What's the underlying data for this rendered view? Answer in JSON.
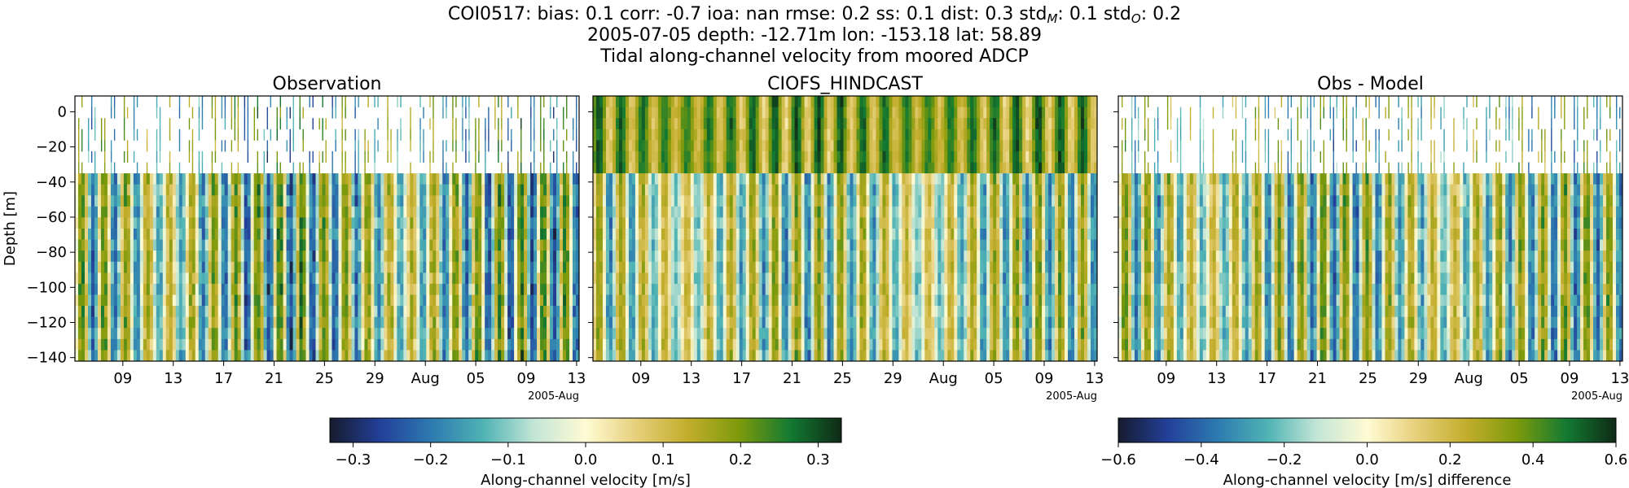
{
  "header": {
    "line1": {
      "stat_id": "COI0517",
      "bias_label": "bias:",
      "bias_value": "0.1",
      "corr_label": "corr:",
      "corr_value": "-0.7",
      "ioa_label": "ioa:",
      "ioa_value": "nan",
      "rmse_label": "rmse:",
      "rmse_value": "0.2",
      "ss_label": "ss:",
      "ss_value": "0.1",
      "dist_label": "dist:",
      "dist_value": "0.3",
      "stdm_base": "std",
      "stdm_sub": "M",
      "stdm_value": "0.1",
      "stdo_base": "std",
      "stdo_sub": "O",
      "stdo_value": "0.2"
    },
    "line2": "2005-07-05 depth: -12.71m lon: -153.18 lat: 58.89",
    "line3": "Tidal along-channel velocity from moored ADCP"
  },
  "chart_data": [
    {
      "type": "heatmap",
      "title": "Observation",
      "ylabel": "Depth [m]",
      "ylim": [
        -142,
        9
      ],
      "yticks": [
        0,
        -20,
        -40,
        -60,
        -80,
        -100,
        -120,
        -140
      ],
      "xticks": [
        "09",
        "13",
        "17",
        "21",
        "25",
        "29",
        "Aug",
        "05",
        "09",
        "13"
      ],
      "x_offset_label": "2005-Aug",
      "x_range": [
        "2005-07-05",
        "2005-08-14"
      ],
      "missing_above_depth": -34,
      "colormap": "delta",
      "clim": [
        -0.33,
        0.33
      ],
      "amplitude": 0.25
    },
    {
      "type": "heatmap",
      "title": "CIOFS_HINDCAST",
      "ylim": [
        -142,
        9
      ],
      "yticks": [
        0,
        -20,
        -40,
        -60,
        -80,
        -100,
        -120,
        -140
      ],
      "xticks": [
        "09",
        "13",
        "17",
        "21",
        "25",
        "29",
        "Aug",
        "05",
        "09",
        "13"
      ],
      "x_offset_label": "2005-Aug",
      "x_range": [
        "2005-07-05",
        "2005-08-14"
      ],
      "colormap": "delta",
      "clim": [
        -0.33,
        0.33
      ],
      "amplitude": 0.2
    },
    {
      "type": "heatmap",
      "title": "Obs - Model",
      "ylim": [
        -142,
        9
      ],
      "yticks": [
        0,
        -20,
        -40,
        -60,
        -80,
        -100,
        -120,
        -140
      ],
      "xticks": [
        "09",
        "13",
        "17",
        "21",
        "25",
        "29",
        "Aug",
        "05",
        "09",
        "13"
      ],
      "x_offset_label": "2005-Aug",
      "x_range": [
        "2005-07-05",
        "2005-08-14"
      ],
      "missing_above_depth": -34,
      "colormap": "delta",
      "clim": [
        -0.6,
        0.6
      ],
      "amplitude": 0.4
    }
  ],
  "colorbars": [
    {
      "label": "Along-channel velocity [m/s]",
      "ticks": [
        "−0.3",
        "−0.2",
        "−0.1",
        "0.0",
        "0.1",
        "0.2",
        "0.3"
      ],
      "min": -0.33,
      "max": 0.33,
      "tick_values": [
        -0.3,
        -0.2,
        -0.1,
        0.0,
        0.1,
        0.2,
        0.3
      ]
    },
    {
      "label": "Along-channel velocity [m/s] difference",
      "ticks": [
        "−0.6",
        "−0.4",
        "−0.2",
        "0.0",
        "0.2",
        "0.4",
        "0.6"
      ],
      "min": -0.6,
      "max": 0.6,
      "tick_values": [
        -0.6,
        -0.4,
        -0.2,
        0.0,
        0.2,
        0.4,
        0.6
      ]
    }
  ],
  "colors": {
    "cmap_stops": [
      "#161b2e",
      "#23409a",
      "#2d7bb0",
      "#4fb3b4",
      "#c4e6d6",
      "#fffbd4",
      "#e6cf7a",
      "#c2ad2b",
      "#7d9a0b",
      "#137a32",
      "#0f2a16"
    ]
  }
}
